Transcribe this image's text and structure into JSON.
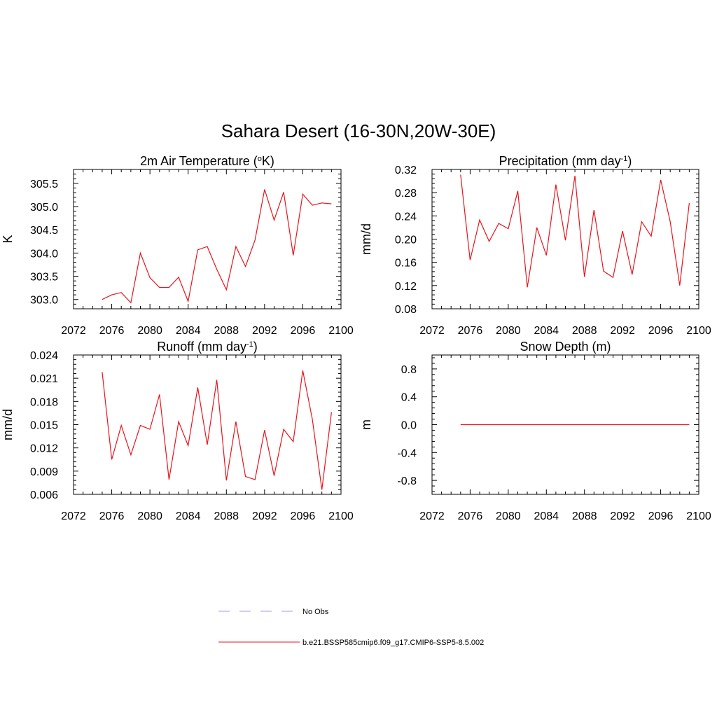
{
  "figure": {
    "title": "Sahara Desert (16-30N,20W-30E)",
    "line_color": "#e8141c",
    "obs_color": "#9aa0f0"
  },
  "legend": {
    "items": [
      {
        "label": "No Obs",
        "style": "dashed"
      },
      {
        "label": "b.e21.BSSP585cmip6.f09_g17.CMIP6-SSP5-8.5.002",
        "style": "solid"
      }
    ]
  },
  "chart_data": [
    {
      "type": "line",
      "title_main": "2m Air Temperature (",
      "title_sup": "o",
      "title_tail": "K)",
      "ylabel": "K",
      "xlim": [
        2072,
        2100
      ],
      "ylim": [
        302.8,
        305.8
      ],
      "xticks": [
        2072,
        2076,
        2080,
        2084,
        2088,
        2092,
        2096,
        2100
      ],
      "yticks": [
        "303.0",
        "303.5",
        "304.0",
        "304.5",
        "305.0",
        "305.5"
      ],
      "series": [
        {
          "x": [
            2075,
            2076,
            2077,
            2078,
            2079,
            2080,
            2081,
            2082,
            2083,
            2084,
            2085,
            2086,
            2087,
            2088,
            2089,
            2090,
            2091,
            2092,
            2093,
            2094,
            2095,
            2096,
            2097,
            2098,
            2099
          ],
          "values": [
            303.0,
            303.1,
            303.15,
            302.93,
            304.0,
            303.47,
            303.26,
            303.26,
            303.48,
            302.96,
            304.07,
            304.14,
            303.65,
            303.21,
            304.14,
            303.71,
            304.28,
            305.37,
            304.71,
            305.31,
            303.95,
            305.27,
            305.03,
            305.08,
            305.06
          ]
        }
      ]
    },
    {
      "type": "line",
      "title_main": "Precipitation (mm day",
      "title_sup": "-1",
      "title_tail": ")",
      "ylabel": "mm/d",
      "xlim": [
        2072,
        2100
      ],
      "ylim": [
        0.08,
        0.32
      ],
      "xticks": [
        2072,
        2076,
        2080,
        2084,
        2088,
        2092,
        2096,
        2100
      ],
      "yticks": [
        "0.08",
        "0.12",
        "0.16",
        "0.20",
        "0.24",
        "0.28",
        "0.32"
      ],
      "series": [
        {
          "x": [
            2075,
            2076,
            2077,
            2078,
            2079,
            2080,
            2081,
            2082,
            2083,
            2084,
            2085,
            2086,
            2087,
            2088,
            2089,
            2090,
            2091,
            2092,
            2093,
            2094,
            2095,
            2096,
            2097,
            2098,
            2099
          ],
          "values": [
            0.311,
            0.164,
            0.233,
            0.196,
            0.227,
            0.218,
            0.283,
            0.117,
            0.22,
            0.172,
            0.294,
            0.198,
            0.309,
            0.135,
            0.25,
            0.145,
            0.134,
            0.214,
            0.139,
            0.23,
            0.205,
            0.302,
            0.23,
            0.12,
            0.262
          ]
        }
      ]
    },
    {
      "type": "line",
      "title_main": "Runoff (mm day",
      "title_sup": "-1",
      "title_tail": ")",
      "ylabel": "mm/d",
      "xlim": [
        2072,
        2100
      ],
      "ylim": [
        0.006,
        0.024
      ],
      "xticks": [
        2072,
        2076,
        2080,
        2084,
        2088,
        2092,
        2096,
        2100
      ],
      "yticks": [
        "0.006",
        "0.009",
        "0.012",
        "0.015",
        "0.018",
        "0.021",
        "0.024"
      ],
      "series": [
        {
          "x": [
            2075,
            2076,
            2077,
            2078,
            2079,
            2080,
            2081,
            2082,
            2083,
            2084,
            2085,
            2086,
            2087,
            2088,
            2089,
            2090,
            2091,
            2092,
            2093,
            2094,
            2095,
            2096,
            2097,
            2098,
            2099
          ],
          "values": [
            0.0218,
            0.0105,
            0.0149,
            0.0111,
            0.0149,
            0.0144,
            0.0189,
            0.0079,
            0.0154,
            0.0123,
            0.0198,
            0.0124,
            0.0208,
            0.0078,
            0.0154,
            0.0083,
            0.0079,
            0.0143,
            0.0084,
            0.0144,
            0.0128,
            0.022,
            0.0157,
            0.0066,
            0.0166
          ]
        }
      ]
    },
    {
      "type": "line",
      "title_main": "Snow Depth (m)",
      "title_sup": "",
      "title_tail": "",
      "ylabel": "m",
      "xlim": [
        2072,
        2100
      ],
      "ylim": [
        -1.0,
        1.0
      ],
      "xticks": [
        2072,
        2076,
        2080,
        2084,
        2088,
        2092,
        2096,
        2100
      ],
      "yticks": [
        "-0.8",
        "-0.4",
        "0.0",
        "0.4",
        "0.8"
      ],
      "series": [
        {
          "x": [
            2075,
            2076,
            2077,
            2078,
            2079,
            2080,
            2081,
            2082,
            2083,
            2084,
            2085,
            2086,
            2087,
            2088,
            2089,
            2090,
            2091,
            2092,
            2093,
            2094,
            2095,
            2096,
            2097,
            2098,
            2099
          ],
          "values": [
            0,
            0,
            0,
            0,
            0,
            0,
            0,
            0,
            0,
            0,
            0,
            0,
            0,
            0,
            0,
            0,
            0,
            0,
            0,
            0,
            0,
            0,
            0,
            0,
            0
          ]
        }
      ]
    }
  ]
}
